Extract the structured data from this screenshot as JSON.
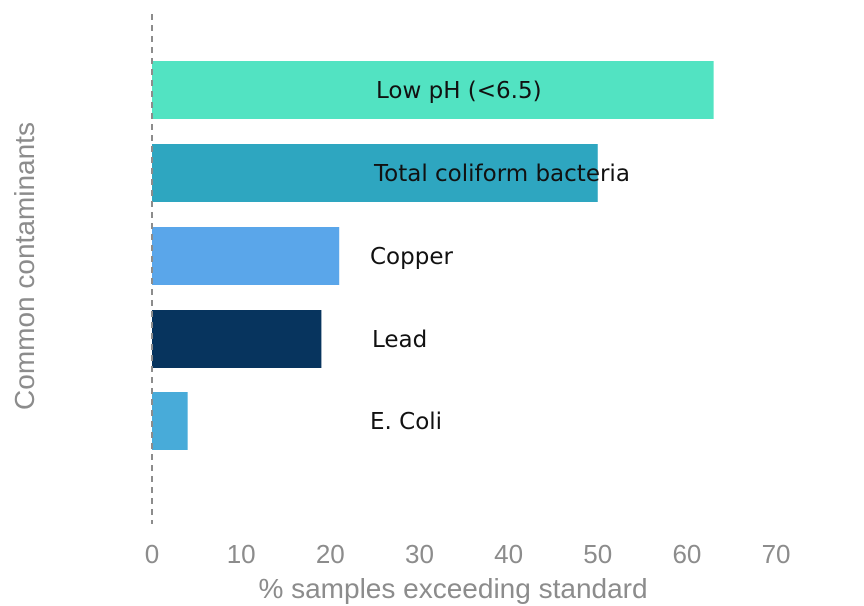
{
  "chart_data": {
    "type": "bar",
    "orientation": "horizontal",
    "title": "",
    "xlabel": "% samples exceeding standard",
    "ylabel": "Common contaminants",
    "xlim": [
      0,
      70
    ],
    "xticks": [
      "0",
      "10",
      "20",
      "30",
      "40",
      "50",
      "60",
      "70"
    ],
    "grid": false,
    "legend": "none",
    "categories": [
      "Low pH (<6.5)",
      "Total coliform bacteria",
      "Copper",
      "Lead",
      "E. Coli"
    ],
    "values": [
      63,
      50,
      21,
      19,
      4
    ],
    "colors": [
      "#52e3c2",
      "#2ea6c0",
      "#5aa6ea",
      "#07345e",
      "#48abd9"
    ]
  }
}
